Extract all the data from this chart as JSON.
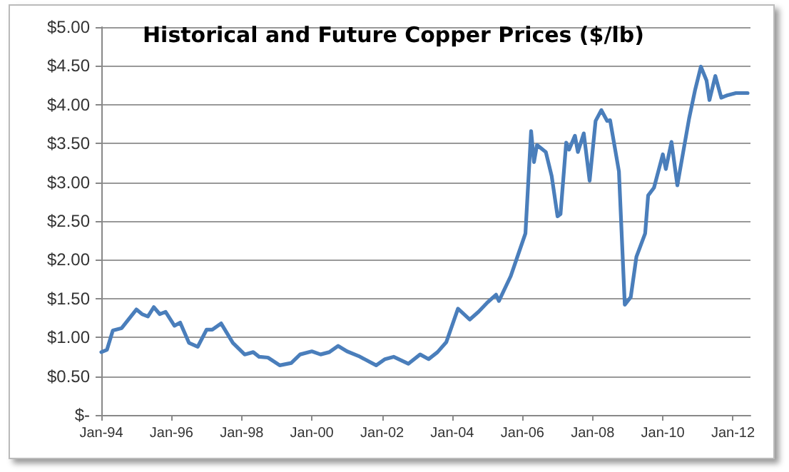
{
  "chart_data": {
    "type": "line",
    "title": "Historical and Future Copper Prices ($/lb)",
    "x": [
      "1994-01",
      "1994-03",
      "1994-05",
      "1994-08",
      "1995-01",
      "1995-03",
      "1995-05",
      "1995-07",
      "1995-09",
      "1995-11",
      "1996-02",
      "1996-04",
      "1996-07",
      "1996-10",
      "1997-01",
      "1997-03",
      "1997-06",
      "1997-10",
      "1998-02",
      "1998-05",
      "1998-07",
      "1998-10",
      "1999-02",
      "1999-06",
      "1999-09",
      "2000-01",
      "2000-04",
      "2000-07",
      "2000-10",
      "2001-01",
      "2001-05",
      "2001-11",
      "2002-02",
      "2002-05",
      "2002-10",
      "2003-02",
      "2003-05",
      "2003-08",
      "2003-11",
      "2004-03",
      "2004-07",
      "2004-10",
      "2005-01",
      "2005-04",
      "2005-05",
      "2005-09",
      "2005-11",
      "2006-02",
      "2006-04",
      "2006-05",
      "2006-06",
      "2006-09",
      "2006-11",
      "2007-01",
      "2007-02",
      "2007-04",
      "2007-05",
      "2007-07",
      "2007-08",
      "2007-10",
      "2007-12",
      "2008-02",
      "2008-04",
      "2008-06",
      "2008-07",
      "2008-10",
      "2008-12",
      "2009-02",
      "2009-04",
      "2009-07",
      "2009-08",
      "2009-10",
      "2010-01",
      "2010-02",
      "2010-04",
      "2010-06",
      "2010-10",
      "2010-12",
      "2011-02",
      "2011-04",
      "2011-05",
      "2011-07",
      "2011-09",
      "2011-11",
      "2012-02",
      "2012-06"
    ],
    "series": [
      {
        "color": "#4a7ebb",
        "values": [
          0.81,
          0.84,
          1.09,
          1.12,
          1.36,
          1.3,
          1.27,
          1.39,
          1.3,
          1.33,
          1.15,
          1.19,
          0.93,
          0.88,
          1.1,
          1.1,
          1.18,
          0.93,
          0.78,
          0.81,
          0.75,
          0.74,
          0.64,
          0.67,
          0.78,
          0.82,
          0.78,
          0.81,
          0.89,
          0.82,
          0.76,
          0.64,
          0.72,
          0.75,
          0.66,
          0.78,
          0.72,
          0.81,
          0.94,
          1.37,
          1.23,
          1.33,
          1.45,
          1.55,
          1.47,
          1.79,
          2.01,
          2.34,
          3.66,
          3.26,
          3.48,
          3.39,
          3.08,
          2.56,
          2.59,
          3.51,
          3.42,
          3.6,
          3.39,
          3.63,
          3.02,
          3.79,
          3.93,
          3.79,
          3.8,
          3.14,
          1.42,
          1.52,
          2.04,
          2.34,
          2.83,
          2.93,
          3.36,
          3.17,
          3.52,
          2.96,
          3.82,
          4.18,
          4.49,
          4.31,
          4.06,
          4.37,
          4.09,
          4.12,
          4.15,
          4.15
        ]
      }
    ],
    "xlim": [
      "1994-01",
      "2012-07"
    ],
    "xticks": [
      {
        "value": "1994-01",
        "label": "Jan-94"
      },
      {
        "value": "1996-01",
        "label": "Jan-96"
      },
      {
        "value": "1998-01",
        "label": "Jan-98"
      },
      {
        "value": "2000-01",
        "label": "Jan-00"
      },
      {
        "value": "2002-01",
        "label": "Jan-02"
      },
      {
        "value": "2004-01",
        "label": "Jan-04"
      },
      {
        "value": "2006-01",
        "label": "Jan-06"
      },
      {
        "value": "2008-01",
        "label": "Jan-08"
      },
      {
        "value": "2010-01",
        "label": "Jan-10"
      },
      {
        "value": "2012-01",
        "label": "Jan-12"
      }
    ],
    "ylim": [
      0,
      5
    ],
    "yticks": [
      {
        "value": 0,
        "label": "$-"
      },
      {
        "value": 0.5,
        "label": "$0.50"
      },
      {
        "value": 1,
        "label": "$1.00"
      },
      {
        "value": 1.5,
        "label": "$1.50"
      },
      {
        "value": 2,
        "label": "$2.00"
      },
      {
        "value": 2.5,
        "label": "$2.50"
      },
      {
        "value": 3,
        "label": "$3.00"
      },
      {
        "value": 3.5,
        "label": "$3.50"
      },
      {
        "value": 4,
        "label": "$4.00"
      },
      {
        "value": 4.5,
        "label": "$4.50"
      },
      {
        "value": 5,
        "label": "$5.00"
      }
    ],
    "grid": "y",
    "marker": "none",
    "line_style": "solid"
  }
}
